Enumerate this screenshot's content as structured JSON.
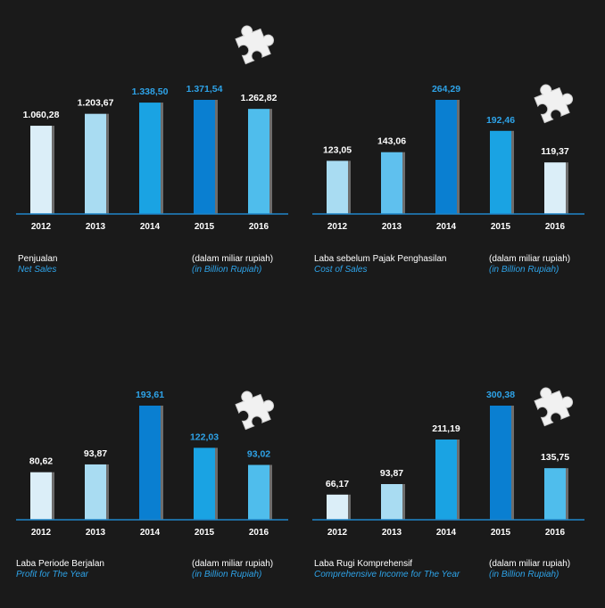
{
  "colors": {
    "background": "#1a1a1a",
    "axis": "#1f86c9",
    "year_text": "#ffffff",
    "english_text": "#2ea3e8",
    "bar_palette": [
      "#dbeef8",
      "#a9dcf2",
      "#5fc0ee",
      "#1aa3e3",
      "#0a7fd1"
    ]
  },
  "unit": {
    "id": "(dalam miliar rupiah)",
    "en": "(in Billion Rupiah)"
  },
  "chart_data": [
    {
      "type": "bar",
      "title": "Penjualan",
      "subtitle": "Net Sales",
      "categories": [
        "2012",
        "2013",
        "2014",
        "2015",
        "2016"
      ],
      "values": [
        1060.28,
        1203.67,
        1338.5,
        1371.54,
        1262.82
      ],
      "value_labels": [
        "1.060,28",
        "1.203,67",
        "1.338,50",
        "1.371,54",
        "1.262,82"
      ],
      "value_label_colors": [
        "#ffffff",
        "#ffffff",
        "#2ea3e8",
        "#2ea3e8",
        "#ffffff"
      ],
      "bar_colors": [
        "#dbeef8",
        "#a9dcf2",
        "#1aa3e3",
        "#0a7fd1",
        "#4fbdec"
      ],
      "ylim": [
        0,
        1371.54
      ],
      "grid": false
    },
    {
      "type": "bar",
      "title": "Laba sebelum Pajak Penghasilan",
      "subtitle": "Cost of Sales",
      "categories": [
        "2012",
        "2013",
        "2014",
        "2015",
        "2016"
      ],
      "values": [
        123.05,
        143.06,
        264.29,
        192.46,
        119.37
      ],
      "value_labels": [
        "123,05",
        "143,06",
        "264,29",
        "192,46",
        "119,37"
      ],
      "value_label_colors": [
        "#ffffff",
        "#ffffff",
        "#2ea3e8",
        "#2ea3e8",
        "#ffffff"
      ],
      "bar_colors": [
        "#a9dcf2",
        "#5fc0ee",
        "#0a7fd1",
        "#1aa3e3",
        "#dbeef8"
      ],
      "ylim": [
        0,
        264.29
      ],
      "grid": false
    },
    {
      "type": "bar",
      "title": "Laba Periode Berjalan",
      "subtitle": "Profit for The Year",
      "categories": [
        "2012",
        "2013",
        "2014",
        "2015",
        "2016"
      ],
      "values": [
        80.62,
        93.87,
        193.61,
        122.03,
        93.02
      ],
      "value_labels": [
        "80,62",
        "93,87",
        "193,61",
        "122,03",
        "93,02"
      ],
      "value_label_colors": [
        "#ffffff",
        "#ffffff",
        "#2ea3e8",
        "#2ea3e8",
        "#2ea3e8"
      ],
      "bar_colors": [
        "#dbeef8",
        "#a9dcf2",
        "#0a7fd1",
        "#1aa3e3",
        "#4fbdec"
      ],
      "ylim": [
        0,
        193.61
      ],
      "grid": false
    },
    {
      "type": "bar",
      "title": "Laba Rugi Komprehensif",
      "subtitle": "Comprehensive Income for The Year",
      "categories": [
        "2012",
        "2013",
        "2014",
        "2015",
        "2016"
      ],
      "values": [
        66.17,
        93.87,
        211.19,
        300.38,
        135.75
      ],
      "value_labels": [
        "66,17",
        "93,87",
        "211,19",
        "300,38",
        "135,75"
      ],
      "value_label_colors": [
        "#ffffff",
        "#ffffff",
        "#ffffff",
        "#2ea3e8",
        "#ffffff"
      ],
      "bar_colors": [
        "#dbeef8",
        "#a9dcf2",
        "#1aa3e3",
        "#0a7fd1",
        "#4fbdec"
      ],
      "ylim": [
        0,
        300.38
      ],
      "grid": false
    }
  ]
}
